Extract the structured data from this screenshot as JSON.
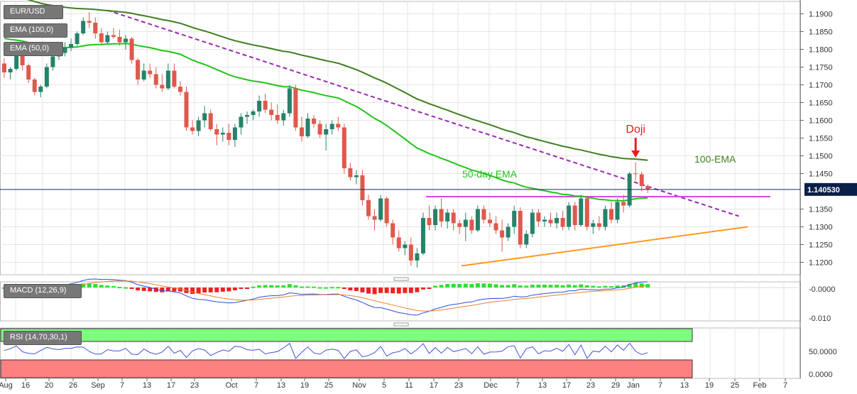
{
  "chart_data": {
    "type": "candlestick",
    "symbol": "EUR/USD",
    "legend": [
      "EUR/USD",
      "EMA (100,0)",
      "EMA (50,0)"
    ],
    "current_price_label": "1.140530",
    "current_price": 1.14053,
    "price_axis": {
      "ticks": [
        "1.1900",
        "1.1850",
        "1.1800",
        "1.1750",
        "1.1700",
        "1.1650",
        "1.1600",
        "1.1550",
        "1.1500",
        "1.1450",
        "1.1350",
        "1.1300",
        "1.1250",
        "1.1200"
      ],
      "range": [
        1.1165,
        1.1935
      ]
    },
    "time_axis": {
      "ticks": [
        "Aug",
        "16",
        "20",
        "26",
        "Sep",
        "7",
        "13",
        "17",
        "23",
        "Oct",
        "7",
        "13",
        "19",
        "25",
        "Nov",
        "5",
        "11",
        "17",
        "23",
        "Dec",
        "7",
        "13",
        "17",
        "23",
        "29",
        "Jan",
        "7",
        "13",
        "19",
        "25",
        "Feb",
        "7"
      ]
    },
    "annotations": {
      "doji": "Doji",
      "ema100": "100-EMA",
      "ema50": "50-day EMA"
    },
    "colors": {
      "bull": "#26826a",
      "bear": "#e0584c",
      "ema100": "#3f7f1f",
      "ema50": "#22c21b",
      "trend_down": "#9a2ab0",
      "resistance": "#d84ae0",
      "support": "#ff9a1a",
      "doji_arrow": "#ee1a1a",
      "price_line": "#1a2a5c",
      "macd_line": "#2a4fd8",
      "signal_line": "#f08030",
      "hist_pos": "#33dd33",
      "hist_neg": "#ee2222",
      "rsi_line": "#3f55d8",
      "rsi_over": "#7fff7f",
      "rsi_under": "#ff8080"
    },
    "candles": [
      [
        1.176,
        1.1775,
        1.172,
        1.1735
      ],
      [
        1.1735,
        1.175,
        1.1715,
        1.1745
      ],
      [
        1.1745,
        1.179,
        1.174,
        1.1785
      ],
      [
        1.1785,
        1.18,
        1.174,
        1.1755
      ],
      [
        1.1755,
        1.176,
        1.1705,
        1.1715
      ],
      [
        1.1715,
        1.172,
        1.167,
        1.168
      ],
      [
        1.168,
        1.17,
        1.1665,
        1.1695
      ],
      [
        1.1695,
        1.176,
        1.169,
        1.175
      ],
      [
        1.175,
        1.179,
        1.174,
        1.178
      ],
      [
        1.178,
        1.18,
        1.177,
        1.179
      ],
      [
        1.179,
        1.182,
        1.178,
        1.1805
      ],
      [
        1.1805,
        1.183,
        1.1795,
        1.1815
      ],
      [
        1.1815,
        1.185,
        1.181,
        1.1845
      ],
      [
        1.1845,
        1.189,
        1.184,
        1.188
      ],
      [
        1.188,
        1.1905,
        1.186,
        1.1875
      ],
      [
        1.1875,
        1.189,
        1.183,
        1.1845
      ],
      [
        1.1845,
        1.186,
        1.1815,
        1.182
      ],
      [
        1.182,
        1.185,
        1.1815,
        1.184
      ],
      [
        1.184,
        1.186,
        1.183,
        1.1835
      ],
      [
        1.1835,
        1.1855,
        1.181,
        1.182
      ],
      [
        1.182,
        1.184,
        1.18,
        1.183
      ],
      [
        1.183,
        1.1835,
        1.176,
        1.177
      ],
      [
        1.177,
        1.1775,
        1.17,
        1.1715
      ],
      [
        1.1715,
        1.176,
        1.171,
        1.174
      ],
      [
        1.174,
        1.176,
        1.172,
        1.173
      ],
      [
        1.173,
        1.175,
        1.169,
        1.17
      ],
      [
        1.17,
        1.173,
        1.168,
        1.169
      ],
      [
        1.169,
        1.176,
        1.1685,
        1.174
      ],
      [
        1.174,
        1.176,
        1.169,
        1.1695
      ],
      [
        1.1695,
        1.171,
        1.167,
        1.168
      ],
      [
        1.168,
        1.1695,
        1.157,
        1.158
      ],
      [
        1.158,
        1.16,
        1.156,
        1.157
      ],
      [
        1.157,
        1.161,
        1.1555,
        1.16
      ],
      [
        1.16,
        1.164,
        1.158,
        1.162
      ],
      [
        1.162,
        1.163,
        1.157,
        1.1575
      ],
      [
        1.1575,
        1.159,
        1.153,
        1.156
      ],
      [
        1.156,
        1.158,
        1.154,
        1.1565
      ],
      [
        1.1565,
        1.159,
        1.153,
        1.1545
      ],
      [
        1.1545,
        1.159,
        1.1525,
        1.158
      ],
      [
        1.158,
        1.162,
        1.156,
        1.161
      ],
      [
        1.161,
        1.1625,
        1.159,
        1.1615
      ],
      [
        1.1615,
        1.163,
        1.16,
        1.1625
      ],
      [
        1.1625,
        1.167,
        1.161,
        1.1655
      ],
      [
        1.1655,
        1.1675,
        1.162,
        1.163
      ],
      [
        1.163,
        1.165,
        1.16,
        1.1615
      ],
      [
        1.1615,
        1.1645,
        1.159,
        1.16
      ],
      [
        1.16,
        1.163,
        1.1585,
        1.162
      ],
      [
        1.162,
        1.17,
        1.161,
        1.169
      ],
      [
        1.169,
        1.17,
        1.157,
        1.158
      ],
      [
        1.158,
        1.161,
        1.154,
        1.1555
      ],
      [
        1.1555,
        1.162,
        1.155,
        1.1605
      ],
      [
        1.1605,
        1.1615,
        1.158,
        1.159
      ],
      [
        1.159,
        1.16,
        1.155,
        1.156
      ],
      [
        1.156,
        1.159,
        1.1515,
        1.1575
      ],
      [
        1.1575,
        1.16,
        1.156,
        1.159
      ],
      [
        1.159,
        1.161,
        1.157,
        1.158
      ],
      [
        1.158,
        1.159,
        1.145,
        1.1465
      ],
      [
        1.1465,
        1.148,
        1.143,
        1.144
      ],
      [
        1.144,
        1.146,
        1.142,
        1.1445
      ],
      [
        1.1445,
        1.146,
        1.136,
        1.1375
      ],
      [
        1.1375,
        1.139,
        1.132,
        1.133
      ],
      [
        1.133,
        1.135,
        1.129,
        1.132
      ],
      [
        1.132,
        1.139,
        1.1315,
        1.138
      ],
      [
        1.138,
        1.1385,
        1.13,
        1.131
      ],
      [
        1.131,
        1.132,
        1.125,
        1.127
      ],
      [
        1.127,
        1.129,
        1.123,
        1.124
      ],
      [
        1.124,
        1.126,
        1.122,
        1.125
      ],
      [
        1.125,
        1.127,
        1.119,
        1.1205
      ],
      [
        1.1205,
        1.124,
        1.1185,
        1.1225
      ],
      [
        1.1225,
        1.134,
        1.122,
        1.1325
      ],
      [
        1.1325,
        1.136,
        1.129,
        1.1305
      ],
      [
        1.1305,
        1.136,
        1.129,
        1.135
      ],
      [
        1.135,
        1.138,
        1.13,
        1.1315
      ],
      [
        1.1315,
        1.135,
        1.1295,
        1.134
      ],
      [
        1.134,
        1.135,
        1.129,
        1.131
      ],
      [
        1.131,
        1.132,
        1.128,
        1.13
      ],
      [
        1.13,
        1.134,
        1.126,
        1.132
      ],
      [
        1.132,
        1.133,
        1.128,
        1.129
      ],
      [
        1.129,
        1.136,
        1.1285,
        1.135
      ],
      [
        1.135,
        1.136,
        1.131,
        1.132
      ],
      [
        1.132,
        1.134,
        1.13,
        1.131
      ],
      [
        1.131,
        1.133,
        1.128,
        1.129
      ],
      [
        1.129,
        1.132,
        1.123,
        1.127
      ],
      [
        1.127,
        1.131,
        1.126,
        1.13
      ],
      [
        1.13,
        1.136,
        1.128,
        1.1345
      ],
      [
        1.1345,
        1.1355,
        1.124,
        1.125
      ],
      [
        1.125,
        1.129,
        1.124,
        1.128
      ],
      [
        1.128,
        1.135,
        1.127,
        1.134
      ],
      [
        1.134,
        1.135,
        1.13,
        1.1315
      ],
      [
        1.1315,
        1.133,
        1.13,
        1.132
      ],
      [
        1.132,
        1.134,
        1.13,
        1.131
      ],
      [
        1.131,
        1.134,
        1.1295,
        1.1325
      ],
      [
        1.1325,
        1.1345,
        1.129,
        1.13
      ],
      [
        1.13,
        1.137,
        1.129,
        1.136
      ],
      [
        1.136,
        1.137,
        1.129,
        1.1305
      ],
      [
        1.1305,
        1.139,
        1.13,
        1.138
      ],
      [
        1.138,
        1.1385,
        1.129,
        1.13
      ],
      [
        1.13,
        1.132,
        1.128,
        1.131
      ],
      [
        1.131,
        1.133,
        1.129,
        1.13
      ],
      [
        1.13,
        1.136,
        1.129,
        1.135
      ],
      [
        1.135,
        1.137,
        1.131,
        1.132
      ],
      [
        1.132,
        1.138,
        1.131,
        1.137
      ],
      [
        1.137,
        1.139,
        1.134,
        1.136
      ],
      [
        1.136,
        1.1455,
        1.1355,
        1.145
      ],
      [
        1.145,
        1.1482,
        1.143,
        1.1448
      ],
      [
        1.1448,
        1.1455,
        1.14,
        1.1415
      ],
      [
        1.1415,
        1.142,
        1.1395,
        1.1405
      ]
    ],
    "lines": {
      "trend_down": [
        [
          1.191,
          0
        ],
        [
          1.133,
          182
        ]
      ],
      "resistance": [
        [
          1.1385,
          82
        ],
        [
          1.1385,
          166
        ]
      ],
      "support": [
        [
          1.119,
          88
        ],
        [
          1.13,
          182
        ]
      ]
    }
  }
}
